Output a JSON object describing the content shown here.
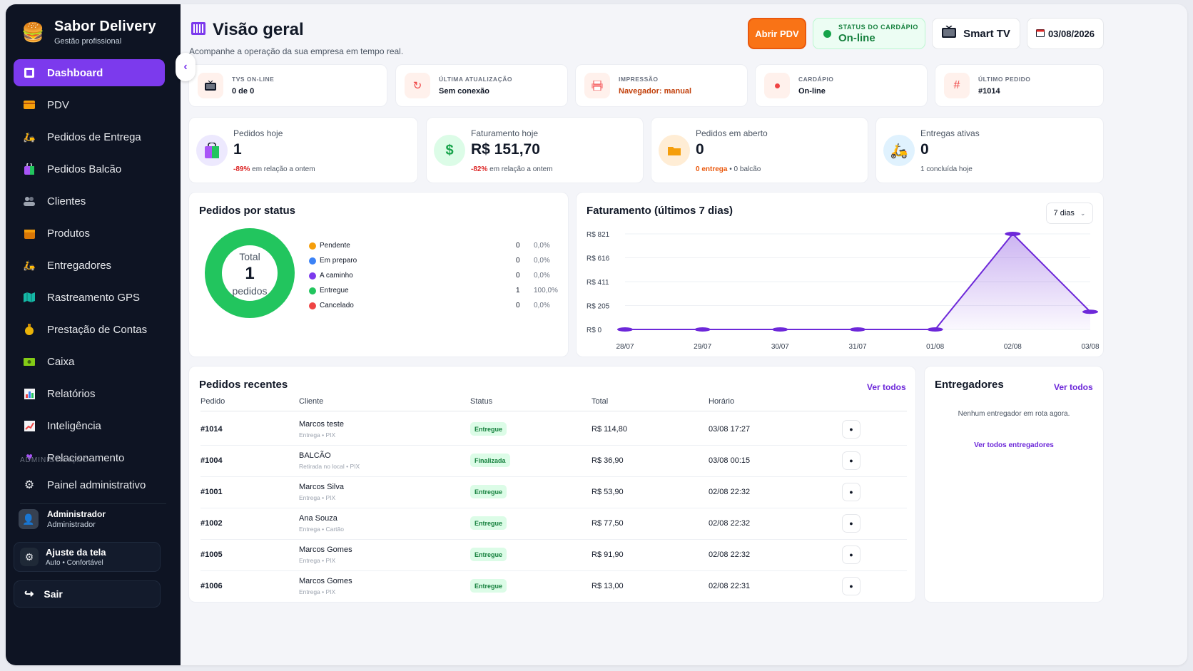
{
  "brand": {
    "name": "Sabor Delivery",
    "tagline": "Gestão profissional"
  },
  "sidebar": {
    "items": [
      {
        "label": "Dashboard",
        "icon": "dashboard-icon"
      },
      {
        "label": "PDV",
        "icon": "card-icon"
      },
      {
        "label": "Pedidos de Entrega",
        "icon": "scooter-icon"
      },
      {
        "label": "Pedidos Balcão",
        "icon": "bag-icon"
      },
      {
        "label": "Clientes",
        "icon": "users-icon"
      },
      {
        "label": "Produtos",
        "icon": "box-icon"
      },
      {
        "label": "Entregadores",
        "icon": "scooter-icon"
      },
      {
        "label": "Rastreamento GPS",
        "icon": "map-icon"
      },
      {
        "label": "Prestação de Contas",
        "icon": "money-bag-icon"
      },
      {
        "label": "Caixa",
        "icon": "cash-icon"
      },
      {
        "label": "Relatórios",
        "icon": "bar-chart-icon"
      },
      {
        "label": "Inteligência",
        "icon": "trend-icon"
      },
      {
        "label": "Relacionamento",
        "icon": "heart-icon"
      }
    ],
    "admin_section": "ADMINISTRAÇÃO",
    "admin_item": "Painel administrativo",
    "user": {
      "name": "Administrador",
      "role": "Administrador"
    },
    "adjust": {
      "title": "Ajuste da tela",
      "value": "Auto • Confortável"
    },
    "logout": "Sair"
  },
  "header": {
    "title": "Visão geral",
    "subtitle": "Acompanhe a operação da sua empresa em tempo real.",
    "open_pdv": "Abrir PDV",
    "menu_status_label": "STATUS DO CARDÁPIO",
    "menu_status_value": "On-line",
    "smart_tv": "Smart TV",
    "date": "03/08/2026"
  },
  "status_cards": [
    {
      "label": "TVS ON-LINE",
      "value": "0 de 0",
      "icon": "tv-icon"
    },
    {
      "label": "ÚLTIMA ATUALIZAÇÃO",
      "value": "Sem conexão",
      "icon": "refresh-icon"
    },
    {
      "label": "IMPRESSÃO",
      "value": "Navegador: manual",
      "icon": "printer-icon"
    },
    {
      "label": "CARDÁPIO",
      "value": "On-line",
      "icon": "dot-icon"
    },
    {
      "label": "ÚLTIMO PEDIDO",
      "value": "#1014",
      "icon": "hash-icon"
    }
  ],
  "kpis": {
    "orders_today": {
      "label": "Pedidos hoje",
      "value": "1",
      "delta": "-89%",
      "delta_text": "em relação a ontem"
    },
    "revenue_today": {
      "label": "Faturamento hoje",
      "value": "R$ 151,70",
      "delta": "-82%",
      "delta_text": "em relação a ontem"
    },
    "open_orders": {
      "label": "Pedidos em aberto",
      "value": "0",
      "delivery": "0 entrega",
      "sep": "•",
      "counter": "0 balcão"
    },
    "active_deliveries": {
      "label": "Entregas ativas",
      "value": "0",
      "sub": "1 concluída hoje"
    }
  },
  "status_panel": {
    "title": "Pedidos por status",
    "total_label": "Total",
    "total_value": "1",
    "total_unit": "pedidos",
    "rows": [
      {
        "name": "Pendente",
        "count": "0",
        "pct": "0,0%",
        "color": "#f59e0b"
      },
      {
        "name": "Em preparo",
        "count": "0",
        "pct": "0,0%",
        "color": "#3b82f6"
      },
      {
        "name": "A caminho",
        "count": "0",
        "pct": "0,0%",
        "color": "#7c3aed"
      },
      {
        "name": "Entregue",
        "count": "1",
        "pct": "100,0%",
        "color": "#22c55e"
      },
      {
        "name": "Cancelado",
        "count": "0",
        "pct": "0,0%",
        "color": "#ef4444"
      }
    ]
  },
  "revenue_panel": {
    "title": "Faturamento (últimos 7 dias)",
    "range": "7 dias"
  },
  "chart_data": {
    "type": "area",
    "title": "Faturamento (últimos 7 dias)",
    "categories": [
      "28/07",
      "29/07",
      "30/07",
      "31/07",
      "01/08",
      "02/08",
      "03/08"
    ],
    "values": [
      0,
      0,
      0,
      0,
      0,
      821,
      151.7
    ],
    "y_ticks": [
      "R$ 821",
      "R$ 616",
      "R$ 411",
      "R$ 205",
      "R$ 0"
    ],
    "ylim": [
      0,
      821
    ],
    "color": "#6d28d9",
    "grid": true
  },
  "recent_orders": {
    "title": "Pedidos recentes",
    "see_all": "Ver todos",
    "columns": [
      "Pedido",
      "Cliente",
      "Status",
      "Total",
      "Horário"
    ],
    "rows": [
      {
        "id": "#1014",
        "client": "Marcos teste",
        "sub": "Entrega • PIX",
        "status": "Entregue",
        "total": "R$ 114,80",
        "time": "03/08 17:27"
      },
      {
        "id": "#1004",
        "client": "BALCÃO",
        "sub": "Retirada no local • PIX",
        "status": "Finalizada",
        "total": "R$ 36,90",
        "time": "03/08 00:15"
      },
      {
        "id": "#1001",
        "client": "Marcos Silva",
        "sub": "Entrega • PIX",
        "status": "Entregue",
        "total": "R$ 53,90",
        "time": "02/08 22:32"
      },
      {
        "id": "#1002",
        "client": "Ana Souza",
        "sub": "Entrega • Cartão",
        "status": "Entregue",
        "total": "R$ 77,50",
        "time": "02/08 22:32"
      },
      {
        "id": "#1005",
        "client": "Marcos Gomes",
        "sub": "Entrega • PIX",
        "status": "Entregue",
        "total": "R$ 91,90",
        "time": "02/08 22:32"
      },
      {
        "id": "#1006",
        "client": "Marcos Gomes",
        "sub": "Entrega • PIX",
        "status": "Entregue",
        "total": "R$ 13,00",
        "time": "02/08 22:31"
      }
    ]
  },
  "drivers_panel": {
    "title": "Entregadores",
    "see_all": "Ver todos",
    "empty": "Nenhum entregador em rota agora.",
    "all_link": "Ver todos entregadores"
  }
}
